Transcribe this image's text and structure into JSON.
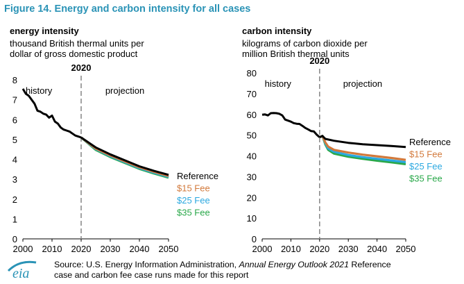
{
  "figure_title": "Figure 14. Energy and carbon intensity for all cases",
  "source_text": {
    "prefix": "Source: U.S. Energy Information Administration, ",
    "italic": "Annual Energy Outlook 2021",
    "suffix": " Reference",
    "line2": "case and carbon fee case runs made for this report"
  },
  "logo_text": "eia",
  "colors": {
    "title": "#2a93b6",
    "Reference": "#000000",
    "$15 Fee": "#d2793b",
    "$25 Fee": "#2ba8e0",
    "$35 Fee": "#2aa84a",
    "divider": "#8c8c8c"
  },
  "chart_data": [
    {
      "type": "line",
      "title": "energy intensity",
      "subtitle": "thousand British thermal units per\ndollar of gross domestic product",
      "divider_year_label": "2020",
      "region_labels": [
        "history",
        "projection"
      ],
      "xlim": [
        2000,
        2050
      ],
      "ylim": [
        0,
        8
      ],
      "x_ticks": [
        "2000",
        "2010",
        "2020",
        "2030",
        "2040",
        "2050"
      ],
      "y_ticks": [
        "0",
        "1",
        "2",
        "3",
        "4",
        "5",
        "6",
        "7",
        "8"
      ],
      "history": {
        "x": [
          2000,
          2001,
          2002,
          2003,
          2004,
          2005,
          2006,
          2007,
          2008,
          2009,
          2010,
          2011,
          2012,
          2013,
          2014,
          2015,
          2016,
          2017,
          2018,
          2019,
          2020
        ],
        "y": [
          7.55,
          7.3,
          7.2,
          7.0,
          6.8,
          6.45,
          6.4,
          6.3,
          6.25,
          6.1,
          6.2,
          5.9,
          5.8,
          5.6,
          5.5,
          5.45,
          5.4,
          5.3,
          5.2,
          5.15,
          5.1
        ]
      },
      "series": [
        {
          "name": "Reference",
          "x": [
            2020,
            2025,
            2030,
            2035,
            2040,
            2045,
            2050
          ],
          "y": [
            5.1,
            4.6,
            4.25,
            3.95,
            3.65,
            3.42,
            3.22
          ]
        },
        {
          "name": "$15 Fee",
          "x": [
            2020,
            2025,
            2030,
            2035,
            2040,
            2045,
            2050
          ],
          "y": [
            5.1,
            4.55,
            4.2,
            3.9,
            3.6,
            3.37,
            3.16
          ]
        },
        {
          "name": "$25 Fee",
          "x": [
            2020,
            2025,
            2030,
            2035,
            2040,
            2045,
            2050
          ],
          "y": [
            5.1,
            4.52,
            4.16,
            3.86,
            3.56,
            3.33,
            3.12
          ]
        },
        {
          "name": "$35 Fee",
          "x": [
            2020,
            2025,
            2030,
            2035,
            2040,
            2045,
            2050
          ],
          "y": [
            5.1,
            4.48,
            4.12,
            3.82,
            3.52,
            3.29,
            3.08
          ]
        }
      ]
    },
    {
      "type": "line",
      "title": "carbon intensity",
      "subtitle": "kilograms of carbon dioxide per\nmillion British thermal units",
      "divider_year_label": "2020",
      "region_labels": [
        "history",
        "projection"
      ],
      "xlim": [
        2000,
        2050
      ],
      "ylim": [
        0,
        80
      ],
      "x_ticks": [
        "2000",
        "2010",
        "2020",
        "2030",
        "2040",
        "2050"
      ],
      "y_ticks": [
        "0",
        "10",
        "20",
        "30",
        "40",
        "50",
        "60",
        "70",
        "80"
      ],
      "history": {
        "x": [
          2000,
          2001,
          2002,
          2003,
          2004,
          2005,
          2006,
          2007,
          2008,
          2009,
          2010,
          2011,
          2012,
          2013,
          2014,
          2015,
          2016,
          2017,
          2018,
          2019,
          2020
        ],
        "y": [
          59.8,
          60.0,
          59.5,
          60.6,
          60.7,
          60.6,
          60.3,
          59.5,
          57.5,
          57.0,
          56.5,
          55.8,
          55.5,
          55.4,
          54.5,
          53.5,
          52.8,
          52.0,
          51.8,
          50.2,
          49.0
        ]
      },
      "series": [
        {
          "name": "Reference",
          "x": [
            2020,
            2021,
            2022,
            2025,
            2030,
            2035,
            2040,
            2045,
            2050
          ],
          "y": [
            49.0,
            49.6,
            48.2,
            47.3,
            46.3,
            45.6,
            45.2,
            44.8,
            44.3
          ]
        },
        {
          "name": "$15 Fee",
          "x": [
            2020,
            2021,
            2022,
            2023,
            2025,
            2030,
            2035,
            2040,
            2045,
            2050
          ],
          "y": [
            49.0,
            49.6,
            46.5,
            44.5,
            42.9,
            41.6,
            40.6,
            39.8,
            39.0,
            38.1
          ]
        },
        {
          "name": "$25 Fee",
          "x": [
            2020,
            2021,
            2022,
            2023,
            2025,
            2030,
            2035,
            2040,
            2045,
            2050
          ],
          "y": [
            49.0,
            49.6,
            46.0,
            43.6,
            42.0,
            40.4,
            39.4,
            38.6,
            37.8,
            37.0
          ]
        },
        {
          "name": "$35 Fee",
          "x": [
            2020,
            2021,
            2022,
            2023,
            2025,
            2030,
            2035,
            2040,
            2045,
            2050
          ],
          "y": [
            49.0,
            49.6,
            45.5,
            42.9,
            41.1,
            39.6,
            38.6,
            37.7,
            36.9,
            36.0
          ]
        }
      ]
    }
  ]
}
